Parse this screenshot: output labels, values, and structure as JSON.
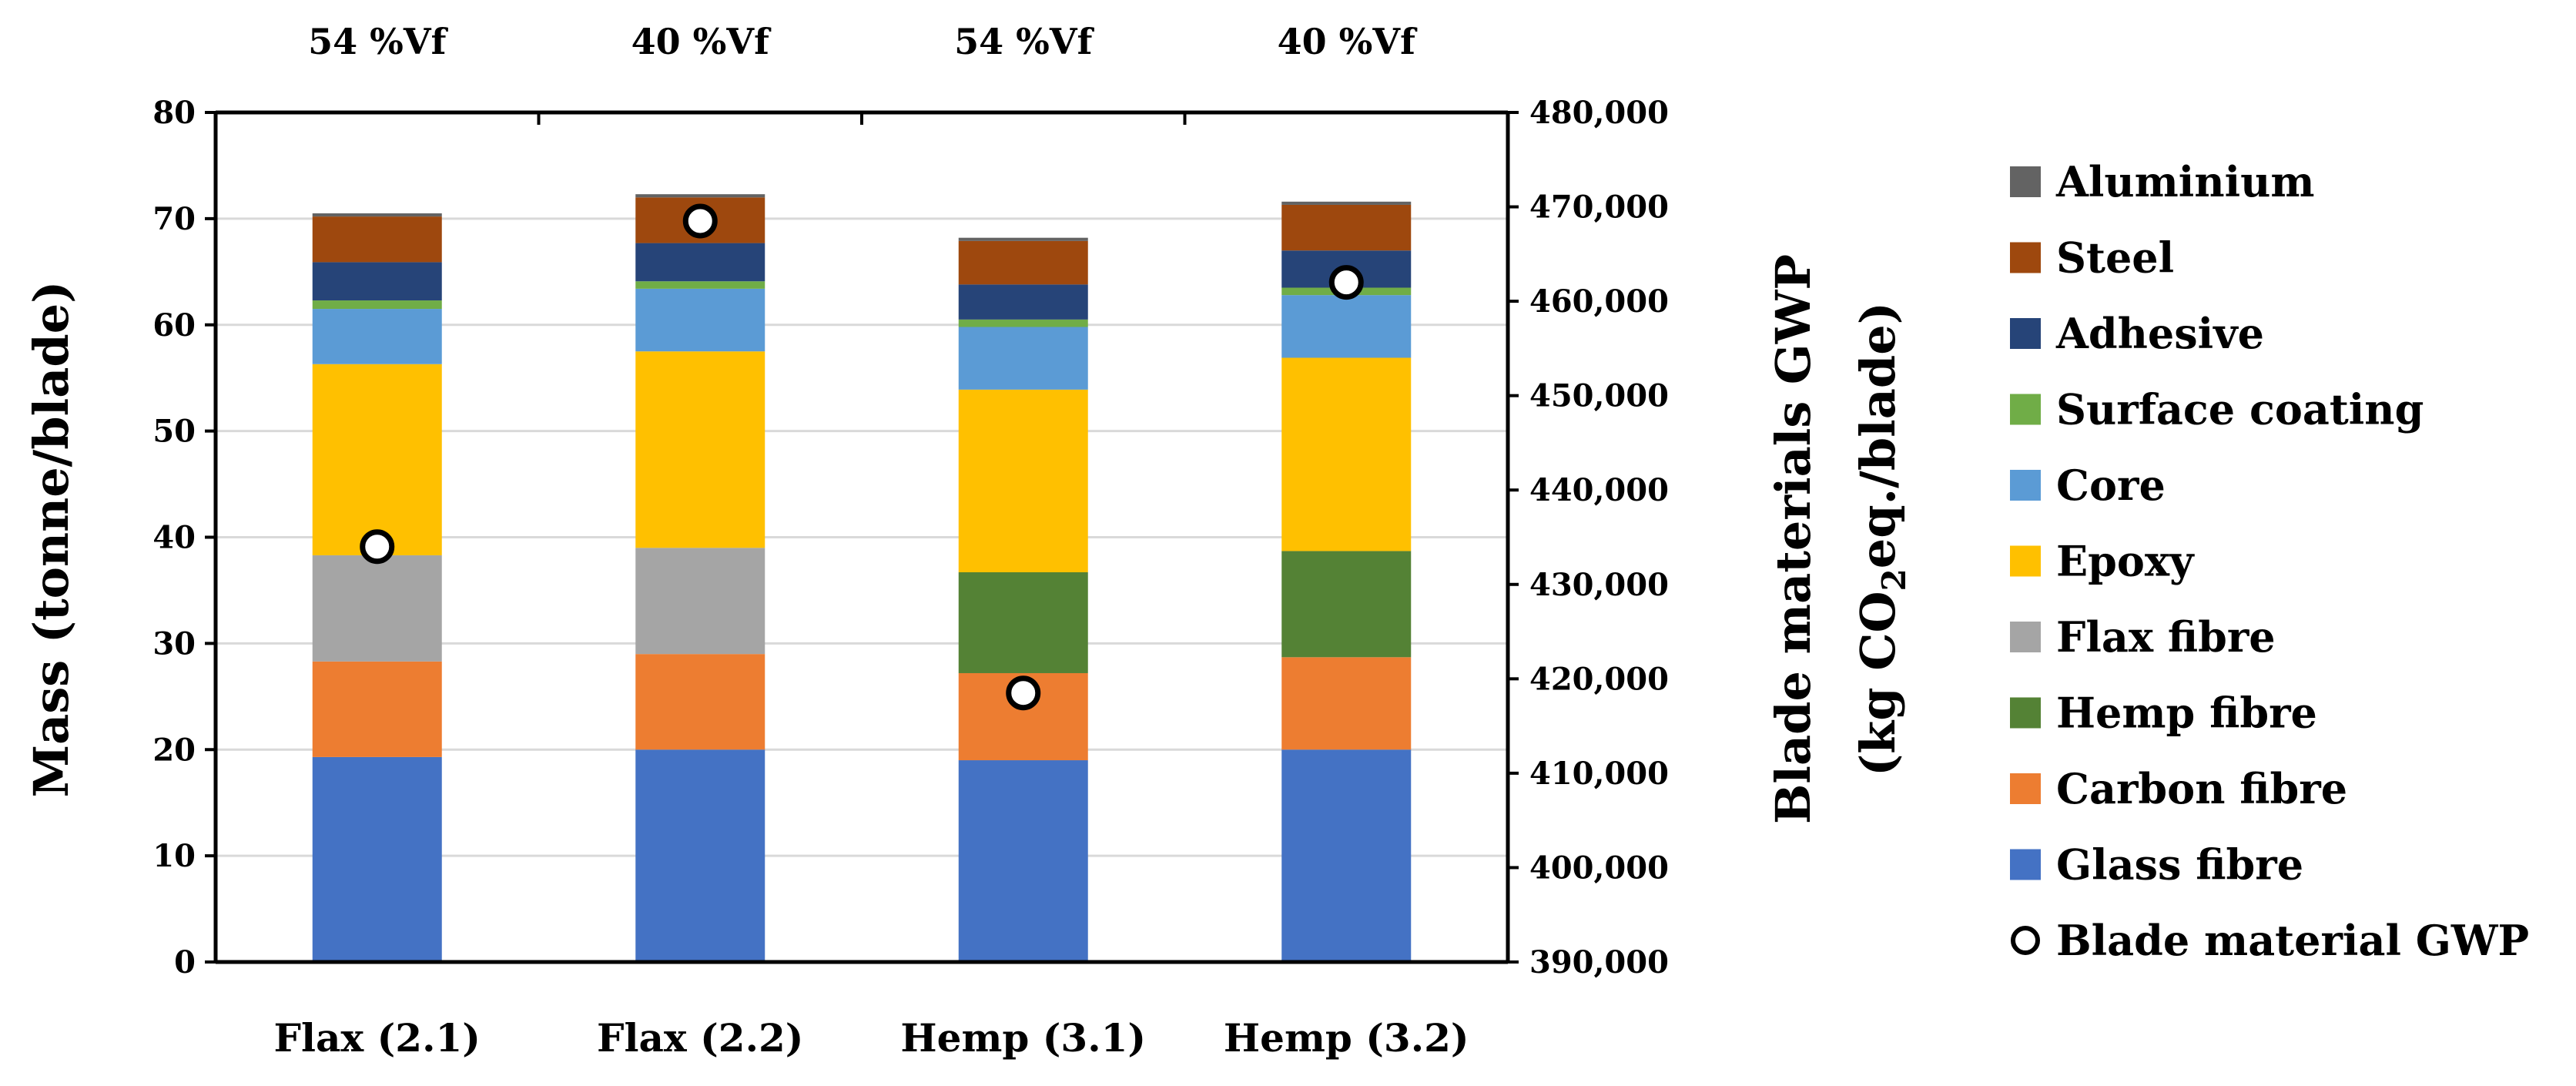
{
  "chart_data": {
    "type": "stacked-bar",
    "categories": [
      "Flax (2.1)",
      "Flax (2.2)",
      "Hemp (3.1)",
      "Hemp (3.2)"
    ],
    "top_labels": [
      "54 %Vf",
      "40 %Vf",
      "54 %Vf",
      "40 %Vf"
    ],
    "ylabel": "Mass (tonne/blade)",
    "y2label_line1": "Blade materials GWP",
    "y2label_line2_pre": "(kg CO",
    "y2label_line2_sub": "2",
    "y2label_line2_post": "eq./blade)",
    "ylim": [
      0,
      80
    ],
    "yticks": [
      "0",
      "10",
      "20",
      "30",
      "40",
      "50",
      "60",
      "70",
      "80"
    ],
    "y2lim": [
      390000,
      480000
    ],
    "y2ticks": [
      "390,000",
      "400,000",
      "410,000",
      "420,000",
      "430,000",
      "440,000",
      "450,000",
      "460,000",
      "470,000",
      "480,000"
    ],
    "grid": true,
    "legend_position": "right",
    "series": [
      {
        "name": "Glass fibre",
        "color": "#4472C4",
        "values": [
          19.3,
          20.0,
          19.0,
          20.0
        ]
      },
      {
        "name": "Carbon fibre",
        "color": "#ED7D31",
        "values": [
          9.0,
          9.0,
          8.2,
          8.7
        ]
      },
      {
        "name": "Hemp fibre",
        "color": "#548235",
        "values": [
          0,
          0,
          9.5,
          10.0
        ]
      },
      {
        "name": "Flax fibre",
        "color": "#A5A5A5",
        "values": [
          10.0,
          10.0,
          0,
          0
        ]
      },
      {
        "name": "Epoxy",
        "color": "#FFC000",
        "values": [
          18.0,
          18.5,
          17.2,
          18.2
        ]
      },
      {
        "name": "Core",
        "color": "#5B9BD5",
        "values": [
          5.2,
          5.9,
          5.9,
          5.9
        ]
      },
      {
        "name": "Surface coating",
        "color": "#70AD47",
        "values": [
          0.8,
          0.7,
          0.7,
          0.7
        ]
      },
      {
        "name": "Adhesive",
        "color": "#264478",
        "values": [
          3.6,
          3.6,
          3.3,
          3.5
        ]
      },
      {
        "name": "Steel",
        "color": "#9E480E",
        "values": [
          4.3,
          4.3,
          4.1,
          4.3
        ]
      },
      {
        "name": "Aluminium",
        "color": "#636363",
        "values": [
          0.3,
          0.3,
          0.3,
          0.3
        ]
      }
    ],
    "gwp_series": {
      "name": "Blade material GWP",
      "values": [
        434000,
        468500,
        418500,
        462000
      ]
    },
    "legend_order": [
      "Aluminium",
      "Steel",
      "Adhesive",
      "Surface coating",
      "Core",
      "Epoxy",
      "Flax fibre",
      "Hemp fibre",
      "Carbon fibre",
      "Glass fibre",
      "Blade material GWP"
    ]
  }
}
